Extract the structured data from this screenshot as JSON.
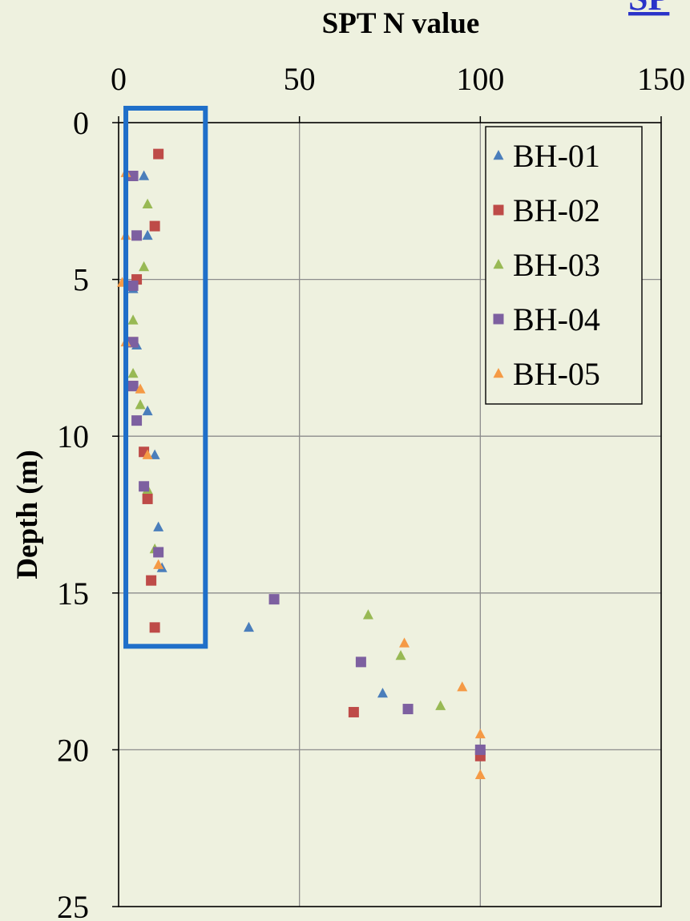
{
  "colors": {
    "background": "#EEF1DF",
    "highlight_box": "#1F6FC9",
    "cropped_link": "#2A33C9",
    "BH-01": "#4A7EBB",
    "BH-02": "#BE4B48",
    "BH-03": "#98B954",
    "BH-04": "#7D60A0",
    "BH-05": "#F59A45"
  },
  "cropped_text": "SP",
  "chart_data": {
    "type": "scatter",
    "xlabel": "SPT N value",
    "ylabel": "Depth (m)",
    "xlim": [
      0,
      150
    ],
    "ylim": [
      0,
      25
    ],
    "x_axis_position": "top",
    "y_axis_reversed": true,
    "x_ticks": [
      "0",
      "50",
      "100",
      "150"
    ],
    "y_ticks": [
      "0",
      "5",
      "10",
      "15",
      "20",
      "25"
    ],
    "grid": true,
    "legend_position": "top-right",
    "highlight_region": {
      "x": [
        2,
        24
      ],
      "y": [
        0,
        16.7
      ],
      "color": "#1F6FC9"
    },
    "series": [
      {
        "name": "BH-01",
        "marker": "triangle",
        "color": "#4A7EBB",
        "points": [
          [
            7,
            1.7
          ],
          [
            8,
            3.6
          ],
          [
            4,
            5.3
          ],
          [
            5,
            7.1
          ],
          [
            8,
            9.2
          ],
          [
            10,
            10.6
          ],
          [
            11,
            12.9
          ],
          [
            12,
            14.2
          ],
          [
            36,
            16.1
          ],
          [
            73,
            18.2
          ],
          [
            100,
            20
          ]
        ]
      },
      {
        "name": "BH-02",
        "marker": "square",
        "color": "#BE4B48",
        "points": [
          [
            11,
            1
          ],
          [
            10,
            3.3
          ],
          [
            5,
            5
          ],
          [
            4,
            7
          ],
          [
            4,
            8.4
          ],
          [
            7,
            10.5
          ],
          [
            8,
            12
          ],
          [
            9,
            14.6
          ],
          [
            10,
            16.1
          ],
          [
            65,
            18.8
          ],
          [
            100,
            20.2
          ]
        ]
      },
      {
        "name": "BH-03",
        "marker": "triangle",
        "color": "#98B954",
        "points": [
          [
            8,
            2.6
          ],
          [
            7,
            4.6
          ],
          [
            4,
            6.3
          ],
          [
            4,
            8
          ],
          [
            6,
            9
          ],
          [
            8,
            11.7
          ],
          [
            10,
            13.6
          ],
          [
            69,
            15.7
          ],
          [
            78,
            17
          ],
          [
            89,
            18.6
          ],
          [
            100,
            20
          ]
        ]
      },
      {
        "name": "BH-04",
        "marker": "square",
        "color": "#7D60A0",
        "points": [
          [
            4,
            1.7
          ],
          [
            5,
            3.6
          ],
          [
            4,
            5.2
          ],
          [
            4,
            7
          ],
          [
            4,
            8.4
          ],
          [
            5,
            9.5
          ],
          [
            7,
            11.6
          ],
          [
            11,
            13.7
          ],
          [
            43,
            15.2
          ],
          [
            67,
            17.2
          ],
          [
            80,
            18.7
          ],
          [
            100,
            20
          ]
        ]
      },
      {
        "name": "BH-05",
        "marker": "triangle",
        "color": "#F59A45",
        "points": [
          [
            2,
            1.6
          ],
          [
            2,
            3.6
          ],
          [
            1,
            5.1
          ],
          [
            2,
            7
          ],
          [
            6,
            8.5
          ],
          [
            8,
            10.6
          ],
          [
            11,
            14.1
          ],
          [
            79,
            16.6
          ],
          [
            95,
            18
          ],
          [
            100,
            19.5
          ],
          [
            100,
            20.8
          ]
        ]
      }
    ]
  }
}
